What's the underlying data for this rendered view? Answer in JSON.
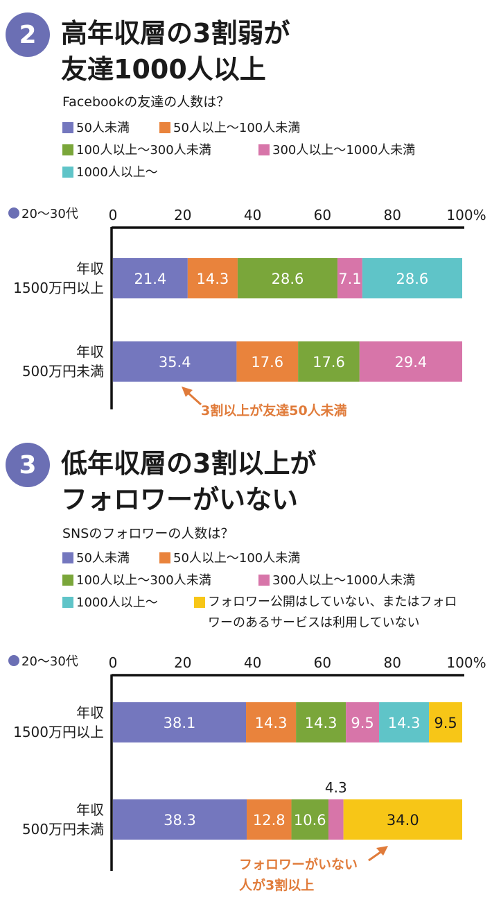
{
  "colors": {
    "c50": "#7477be",
    "c100": "#e9833c",
    "c300": "#7aa63a",
    "c1000": "#d775a9",
    "cOver": "#5fc4c8",
    "cHidden": "#f7c617",
    "accent": "#e07b3a",
    "badge": "#6b6fb4"
  },
  "sections": [
    {
      "number": "2",
      "title_line1": "高年収層の3割弱が",
      "title_line2": "友達1000人以上",
      "subtitle": "Facebookの友達の人数は？",
      "legend": [
        "50人未満",
        "50人以上〜100人未満",
        "100人以上〜300人未満",
        "300人以上〜1000人未満",
        "1000人以上〜"
      ],
      "annotation": "3割以上が友達50人未満"
    },
    {
      "number": "3",
      "title_line1": "低年収層の3割以上が",
      "title_line2": "フォロワーがいない",
      "subtitle": "SNSのフォロワーの人数は？",
      "legend": [
        "50人未満",
        "50人以上〜100人未満",
        "100人以上〜300人未満",
        "300人以上〜1000人未満",
        "1000人以上〜",
        "フォロワー公開はしていない、またはフォロワーのあるサービスは利用していない"
      ],
      "annotation_line1": "フォロワーがいない",
      "annotation_line2": "人が3割以上"
    }
  ],
  "chart_data": [
    {
      "type": "bar",
      "orientation": "horizontal-stacked",
      "group_label": "20〜30代",
      "xlim": [
        0,
        100
      ],
      "xticks": [
        "0",
        "20",
        "40",
        "60",
        "80",
        "100%"
      ],
      "categories": [
        [
          "年収",
          "1500万円以上"
        ],
        [
          "年収",
          "500万円未満"
        ]
      ],
      "series": [
        {
          "name": "50人未満",
          "values": [
            21.4,
            35.4
          ]
        },
        {
          "name": "50人以上〜100人未満",
          "values": [
            14.3,
            17.6
          ]
        },
        {
          "name": "100人以上〜300人未満",
          "values": [
            28.6,
            17.6
          ]
        },
        {
          "name": "300人以上〜1000人未満",
          "values": [
            7.1,
            29.4
          ]
        },
        {
          "name": "1000人以上〜",
          "values": [
            28.6,
            0
          ]
        }
      ]
    },
    {
      "type": "bar",
      "orientation": "horizontal-stacked",
      "group_label": "20〜30代",
      "xlim": [
        0,
        100
      ],
      "xticks": [
        "0",
        "20",
        "40",
        "60",
        "80",
        "100%"
      ],
      "categories": [
        [
          "年収",
          "1500万円以上"
        ],
        [
          "年収",
          "500万円未満"
        ]
      ],
      "series": [
        {
          "name": "50人未満",
          "values": [
            38.1,
            38.3
          ]
        },
        {
          "name": "50人以上〜100人未満",
          "values": [
            14.3,
            12.8
          ]
        },
        {
          "name": "100人以上〜300人未満",
          "values": [
            14.3,
            10.6
          ]
        },
        {
          "name": "300人以上〜1000人未満",
          "values": [
            9.5,
            4.3
          ]
        },
        {
          "name": "1000人以上〜",
          "values": [
            14.3,
            0
          ]
        },
        {
          "name": "フォロワー公開はしていない、またはフォロワーのあるサービスは利用していない",
          "values": [
            9.5,
            34.0
          ]
        }
      ]
    }
  ]
}
